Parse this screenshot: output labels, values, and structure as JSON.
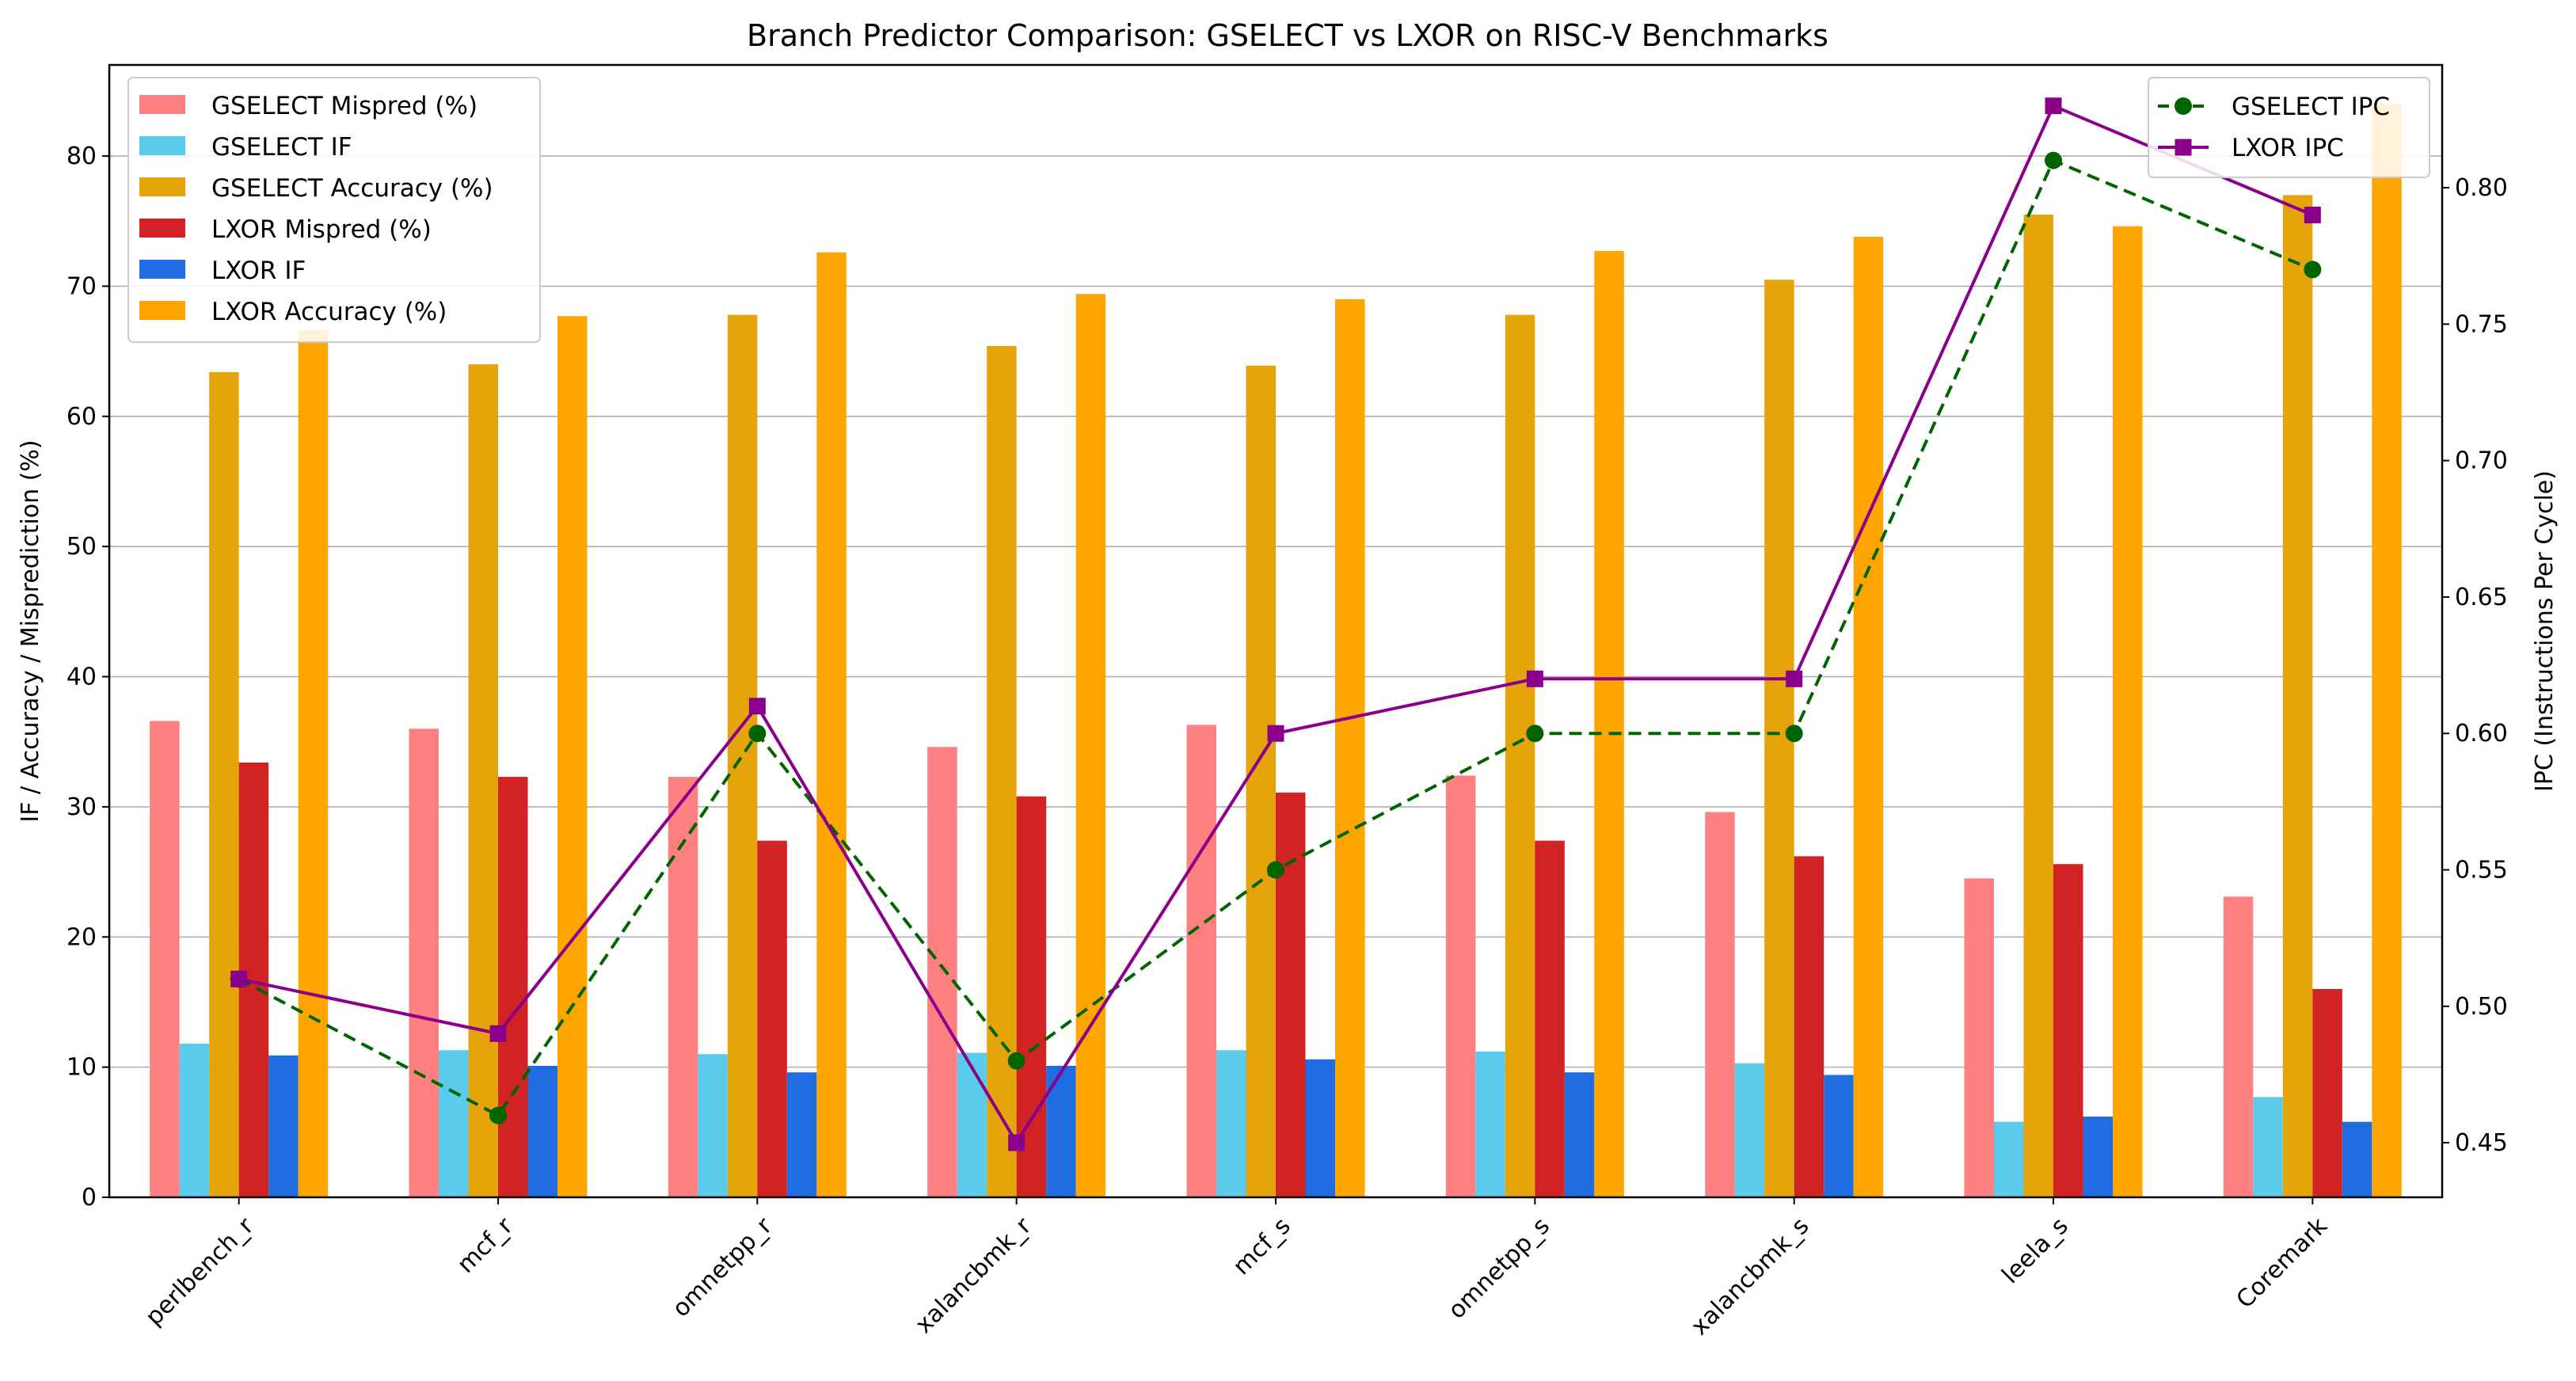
{
  "chart_data": {
    "type": "bar",
    "title": "Branch Predictor Comparison: GSELECT vs LXOR on RISC-V Benchmarks",
    "xlabel": "",
    "ylabel": "IF / Accuracy / Misprediction (%)",
    "y2label": "IPC (Instructions Per Cycle)",
    "ylim": [
      0,
      87
    ],
    "y2lim": [
      0.43,
      0.845
    ],
    "yticks": [
      "0",
      "10",
      "20",
      "30",
      "40",
      "50",
      "60",
      "70",
      "80"
    ],
    "y2ticks": [
      "0.45",
      "0.50",
      "0.55",
      "0.60",
      "0.65",
      "0.70",
      "0.75",
      "0.80"
    ],
    "grid": "horizontal",
    "categories": [
      "perlbench_r",
      "mcf_r",
      "omnetpp_r",
      "xalancbmk_r",
      "mcf_s",
      "omnetpp_s",
      "xalancbmk_s",
      "leela_s",
      "Coremark"
    ],
    "series": [
      {
        "name": "GSELECT Mispred (%)",
        "color": "#ff8080",
        "values": [
          36.6,
          36.0,
          32.3,
          34.6,
          36.3,
          32.4,
          29.6,
          24.5,
          23.1
        ]
      },
      {
        "name": "GSELECT IF",
        "color": "#5bcbec",
        "values": [
          11.8,
          11.3,
          11.0,
          11.1,
          11.3,
          11.2,
          10.3,
          5.8,
          7.7
        ]
      },
      {
        "name": "GSELECT Accuracy (%)",
        "color": "#e5a50a",
        "values": [
          63.4,
          64.0,
          67.8,
          65.4,
          63.9,
          67.8,
          70.5,
          75.5,
          77.0
        ]
      },
      {
        "name": "LXOR Mispred (%)",
        "color": "#d12323",
        "values": [
          33.4,
          32.3,
          27.4,
          30.8,
          31.1,
          27.4,
          26.2,
          25.6,
          16.0
        ]
      },
      {
        "name": "LXOR IF",
        "color": "#1f6de0",
        "values": [
          10.9,
          10.1,
          9.6,
          10.1,
          10.6,
          9.6,
          9.4,
          6.2,
          5.8
        ]
      },
      {
        "name": "LXOR Accuracy (%)",
        "color": "#ffa500",
        "values": [
          66.6,
          67.7,
          72.6,
          69.4,
          69.0,
          72.7,
          73.8,
          74.6,
          84.0
        ]
      }
    ],
    "line_series": [
      {
        "name": "GSELECT IPC",
        "color": "#006400",
        "style": "dashed",
        "marker": "circle",
        "values": [
          0.51,
          0.46,
          0.6,
          0.48,
          0.55,
          0.6,
          0.6,
          0.81,
          0.77
        ]
      },
      {
        "name": "LXOR IPC",
        "color": "#8b008b",
        "style": "solid",
        "marker": "square",
        "values": [
          0.51,
          0.49,
          0.61,
          0.45,
          0.6,
          0.62,
          0.62,
          0.83,
          0.79
        ]
      }
    ],
    "legend_bars_position": "top-left",
    "legend_lines_position": "top-right"
  }
}
